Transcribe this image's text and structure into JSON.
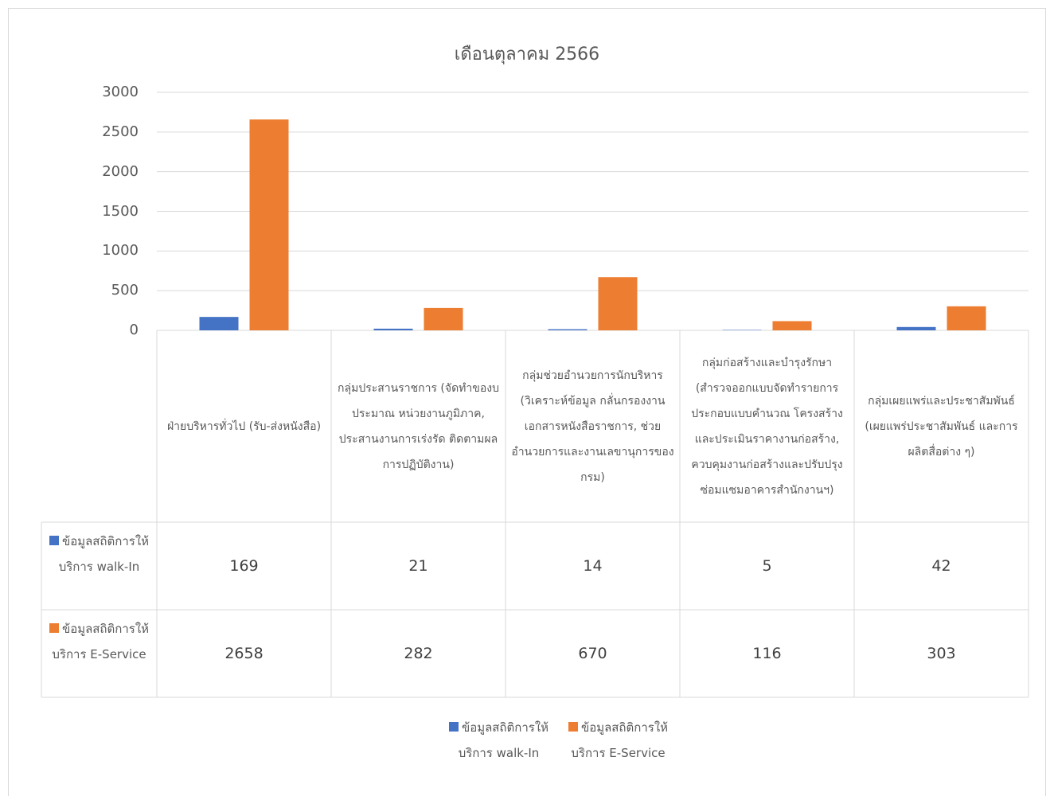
{
  "chart_data": {
    "type": "bar",
    "title": "เดือนตุลาคม 2566",
    "categories": [
      "ฝ่ายบริหารทั่วไป (รับ-ส่งหนังสือ)",
      "กลุ่มประสานราชการ (จัดทำของบประมาณ หน่วยงานภูมิภาค, ประสานงานการเร่งรัด ติดตามผลการปฏิบัติงาน)",
      "กลุ่มช่วยอำนวยการนักบริหาร (วิเคราะห์ข้อมูล กลั่นกรองงานเอกสารหนังสือราชการ, ช่วยอำนวยการและงานเลขานุการของกรม)",
      "กลุ่มก่อสร้างและบำรุงรักษา (สำรวจออกแบบจัดทำรายการประกอบแบบคำนวณ โครงสร้างและประเมินราคางานก่อสร้าง, ควบคุมงานก่อสร้างและปรับปรุงซ่อมแซมอาคารสำนักงานฯ)",
      "กลุ่มเผยแพร่และประชาสัมพันธ์ (เผยแพร่ประชาสัมพันธ์ และการผลิตสื่อต่าง ๆ)"
    ],
    "series": [
      {
        "name": "ข้อมูลสถิติการให้บริการ walk-In",
        "color": "#4472c4",
        "values": [
          169,
          21,
          14,
          5,
          42
        ]
      },
      {
        "name": "ข้อมูลสถิติการให้บริการ E-Service",
        "color": "#ed7d31",
        "values": [
          2658,
          282,
          670,
          116,
          303
        ]
      }
    ],
    "ylim": [
      0,
      3000
    ],
    "yticks": [
      0,
      500,
      1000,
      1500,
      2000,
      2500,
      3000
    ],
    "grid": true,
    "legend": "bottom",
    "data_table": true
  }
}
